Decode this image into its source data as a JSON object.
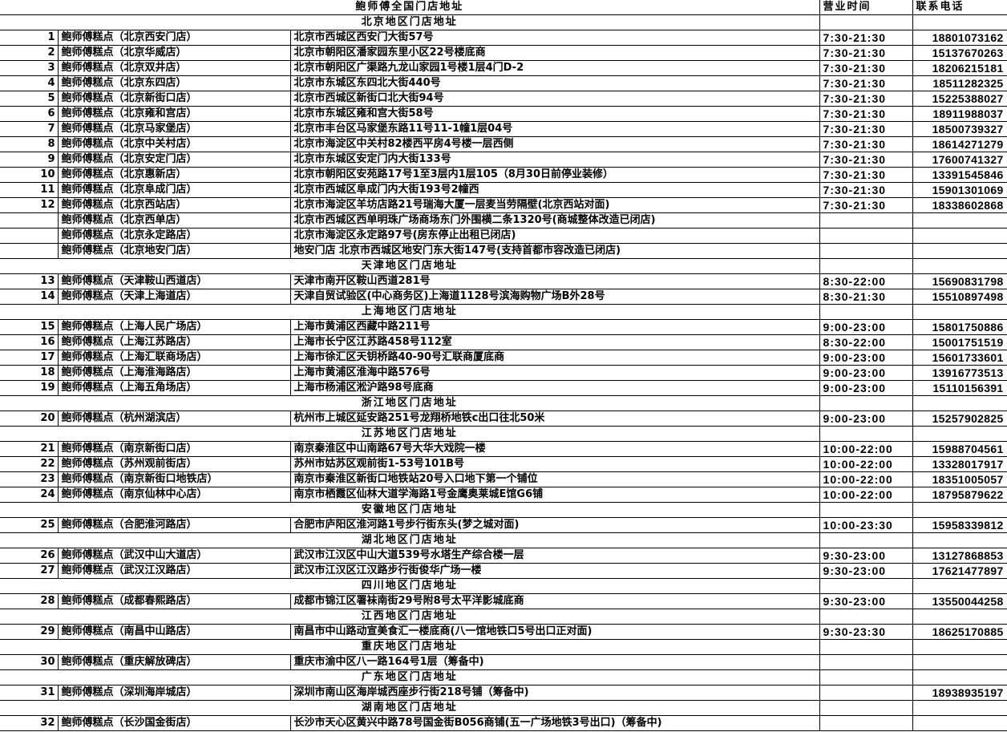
{
  "title": "鲍师傅全国门店地址",
  "header": {
    "hours": "营业时间",
    "phone": "联系电话"
  },
  "regions": [
    {
      "header": "北京地区门店地址",
      "stores": [
        {
          "no": "1",
          "name": "鲍师傅糕点（北京西安门店）",
          "address": "北京市西城区西安门大街57号",
          "hours": "7:30-21:30",
          "phone": "18801073162"
        },
        {
          "no": "2",
          "name": "鲍师傅糕点（北京华威店）",
          "address": "北京市朝阳区潘家园东里小区22号楼底商",
          "hours": "7:30-21:30",
          "phone": "15137670263"
        },
        {
          "no": "3",
          "name": "鲍师傅糕点（北京双井店）",
          "address": "北京市朝阳区广渠路九龙山家园1号楼1层4门D-2",
          "hours": "7:30-21:30",
          "phone": "18206215181"
        },
        {
          "no": "4",
          "name": "鲍师傅糕点（北京东四店）",
          "address": "北京市东城区东四北大街440号",
          "hours": "7:30-21:30",
          "phone": "18511282325"
        },
        {
          "no": "5",
          "name": "鲍师傅糕点（北京新街口店）",
          "address": "北京市西城区新街口北大街94号",
          "hours": "7:30-21:30",
          "phone": "15225388027"
        },
        {
          "no": "6",
          "name": "鲍师傅糕点（北京雍和宫店）",
          "address": "北京市东城区雍和宫大街58号",
          "hours": "7:30-21:30",
          "phone": "18911988037"
        },
        {
          "no": "7",
          "name": "鲍师傅糕点（北京马家堡店）",
          "address": "北京市丰台区马家堡东路11号11-1幢1层04号",
          "hours": "7:30-21:30",
          "phone": "18500739327"
        },
        {
          "no": "8",
          "name": "鲍师傅糕点（北京中关村店）",
          "address": "北京市海淀区中关村82楼西平房4号楼一层西侧",
          "hours": "7:30-21:30",
          "phone": "18614271279"
        },
        {
          "no": "9",
          "name": "鲍师傅糕点（北京安定门店）",
          "address": "北京市东城区安定门内大街133号",
          "hours": "7:30-21:30",
          "phone": "17600741327"
        },
        {
          "no": "10",
          "name": "鲍师傅糕点（北京惠新店）",
          "address": "北京市朝阳区安苑路17号1至3层内1层105（8月30日前停业装修）",
          "hours": "7:30-21:30",
          "phone": "13391545846"
        },
        {
          "no": "11",
          "name": "鲍师傅糕点（北京阜成门店）",
          "address": "北京市西城区阜成门内大街193号2幢西",
          "hours": "7:30-21:30",
          "phone": "15901301069"
        },
        {
          "no": "12",
          "name": "鲍师傅糕点（北京西站店）",
          "address": "北京市海淀区羊坊店路21号瑞海大厦一层麦当劳隔壁(北京西站对面)",
          "hours": "7:30-21:30",
          "phone": "18338602868"
        },
        {
          "no": "",
          "name": "鲍师傅糕点（北京西单店）",
          "address": "北京市西城区西单明珠广场商场东门外围横二条1320号(商城整体改造已闭店)",
          "hours": "",
          "phone": ""
        },
        {
          "no": "",
          "name": "鲍师傅糕点（北京永定路店）",
          "address": "北京市海淀区永定路97号(房东停止出租已闭店)",
          "hours": "",
          "phone": ""
        },
        {
          "no": "",
          "name": "鲍师傅糕点（北京地安门店）",
          "address": "地安门店  北京市西城区地安门东大街147号(支持首都市容改造已闭店)",
          "hours": "",
          "phone": ""
        }
      ]
    },
    {
      "header": "天津地区门店地址",
      "stores": [
        {
          "no": "13",
          "name": "鲍师傅糕点（天津鞍山西道店）",
          "address": "天津市南开区鞍山西道281号",
          "hours": "8:30-22:00",
          "phone": "15690831798"
        },
        {
          "no": "14",
          "name": "鲍师傅糕点（天津上海道店）",
          "address": "天津自贸试验区(中心商务区)上海道1128号滨海购物广场B外28号",
          "hours": "8:30-21:30",
          "phone": "15510897498"
        }
      ]
    },
    {
      "header": "上海地区门店地址",
      "stores": [
        {
          "no": "15",
          "name": "鲍师傅糕点（上海人民广场店）",
          "address": "上海市黄浦区西藏中路211号",
          "hours": "9:00-23:00",
          "phone": "15801750886"
        },
        {
          "no": "16",
          "name": "鲍师傅糕点（上海江苏路店）",
          "address": "上海市长宁区江苏路458号112室",
          "hours": "8:30-22:00",
          "phone": "15001751519"
        },
        {
          "no": "17",
          "name": "鲍师傅糕点（上海汇联商场店）",
          "address": "上海市徐汇区天钥桥路40-90号汇联商厦底商",
          "hours": "9:00-23:00",
          "phone": "15601733601"
        },
        {
          "no": "18",
          "name": "鲍师傅糕点（上海淮海路店）",
          "address": "上海市黄浦区淮海中路576号",
          "hours": "9:00-23:00",
          "phone": "13916773513"
        },
        {
          "no": "19",
          "name": "鲍师傅糕点（上海五角场店）",
          "address": "上海市杨浦区淞沪路98号底商",
          "hours": "9:00-23:00",
          "phone": "15110156391"
        }
      ]
    },
    {
      "header": "浙江地区门店地址",
      "stores": [
        {
          "no": "20",
          "name": "鲍师傅糕点（杭州湖滨店）",
          "address": "杭州市上城区延安路251号龙翔桥地铁c出口往北50米",
          "hours": "9:00-23:00",
          "phone": "15257902825"
        }
      ]
    },
    {
      "header": "江苏地区门店地址",
      "stores": [
        {
          "no": "21",
          "name": "鲍师傅糕点（南京新街口店）",
          "address": "南京秦淮区中山南路67号大华大戏院一楼",
          "hours": "10:00-22:00",
          "phone": "15988704561"
        },
        {
          "no": "22",
          "name": "鲍师傅糕点（苏州观前街店）",
          "address": "苏州市姑苏区观前街1-53号101B号",
          "hours": "10:00-22:00",
          "phone": "13328017917"
        },
        {
          "no": "23",
          "name": "鲍师傅糕点（南京新街口地铁店）",
          "address": "南京市秦淮区新街口地铁站20号入口地下第一个铺位",
          "hours": "10:00-22:00",
          "phone": "18351005057"
        },
        {
          "no": "24",
          "name": "鲍师傅糕点（南京仙林中心店）",
          "address": "南京市栖霞区仙林大道学海路1号金鹰奥莱城E馆G6铺",
          "hours": "10:00-22:00",
          "phone": "18795879622"
        }
      ]
    },
    {
      "header": "安徽地区门店地址",
      "stores": [
        {
          "no": "25",
          "name": "鲍师傅糕点（合肥淮河路店）",
          "address": "合肥市庐阳区淮河路1号步行街东头(梦之城对面)",
          "hours": "10:00-23:30",
          "phone": "15958339812"
        }
      ]
    },
    {
      "header": "湖北地区门店地址",
      "stores": [
        {
          "no": "26",
          "name": "鲍师傅糕点（武汉中山大道店）",
          "address": "武汉市江汉区中山大道539号水塔生产综合楼一层",
          "hours": "9:30-23:00",
          "phone": "13127868853"
        },
        {
          "no": "27",
          "name": "鲍师傅糕点（武汉江汉路店）",
          "address": "武汉市江汉区江汉路步行街俊华广场一楼",
          "hours": "9:30-23:00",
          "phone": "17621477897"
        }
      ]
    },
    {
      "header": "四川地区门店地址",
      "stores": [
        {
          "no": "28",
          "name": "鲍师傅糕点（成都春熙路店）",
          "address": "成都市锦江区署袜南街29号附8号太平洋影城底商",
          "hours": "9:30-23:00",
          "phone": "13550044258"
        }
      ]
    },
    {
      "header": "江西地区门店地址",
      "stores": [
        {
          "no": "29",
          "name": "鲍师傅糕点（南昌中山路店）",
          "address": "南昌市中山路动宣美食汇一楼底商(八一馆地铁口5号出口正对面)",
          "hours": "9:30-23:30",
          "phone": "18625170885"
        }
      ]
    },
    {
      "header": "重庆地区门店地址",
      "stores": [
        {
          "no": "30",
          "name": "鲍师傅糕点（重庆解放碑店）",
          "address": "重庆市渝中区八一路164号1层（筹备中)",
          "hours": "",
          "phone": ""
        }
      ]
    },
    {
      "header": "广东地区门店地址",
      "stores": [
        {
          "no": "31",
          "name": "鲍师傅糕点（深圳海岸城店）",
          "address": "深圳市南山区海岸城西座步行街218号铺（筹备中)",
          "hours": "",
          "phone": "18938935197"
        }
      ]
    },
    {
      "header": "湖南地区门店地址",
      "stores": [
        {
          "no": "32",
          "name": "鲍师傅糕点（长沙国金街店）",
          "address": "长沙市天心区黄兴中路78号国金街B056商铺(五一广场地铁3号出口)（筹备中)",
          "hours": "",
          "phone": ""
        }
      ]
    }
  ]
}
